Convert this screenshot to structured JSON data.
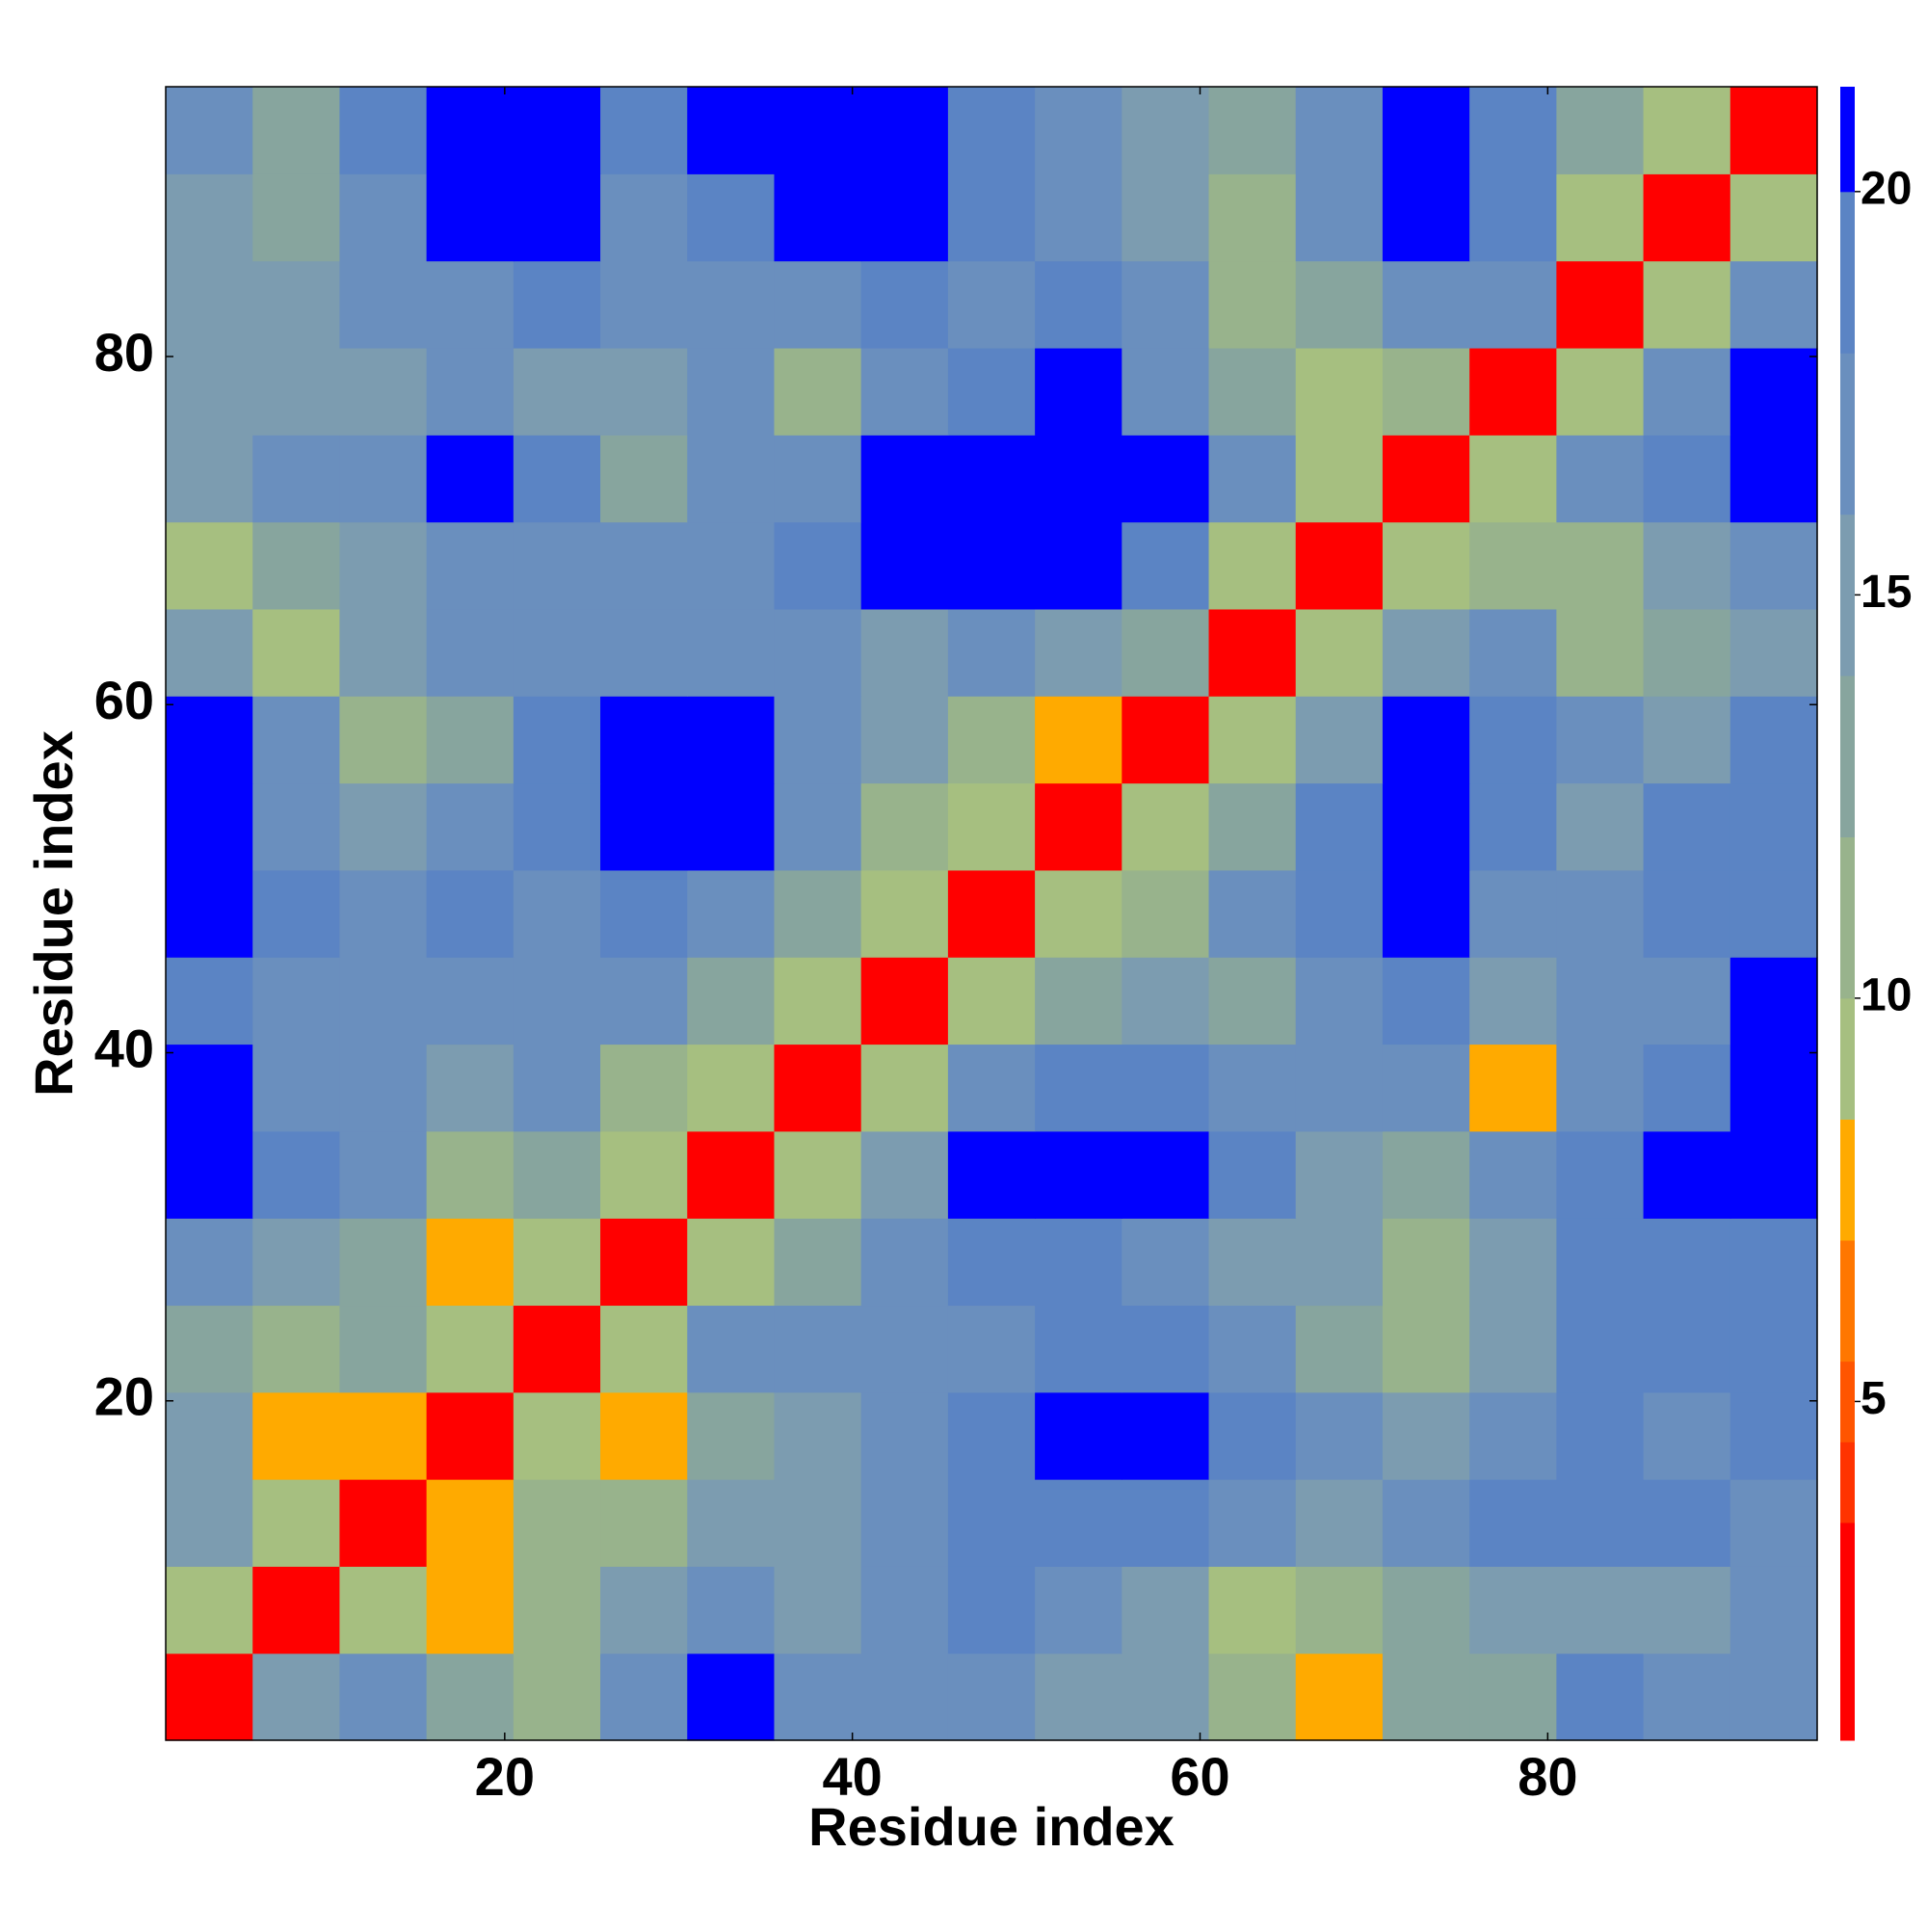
{
  "chart_data": {
    "type": "heatmap",
    "x_label": "Residue index",
    "y_label": "Residue index",
    "x_bins": [
      0.5,
      5.5,
      10.5,
      15.5,
      20.5,
      25.5,
      30.5,
      35.5,
      40.5,
      45.5,
      50.5,
      55.5,
      60.5,
      65.5,
      70.5,
      75.5,
      80.5,
      85.5,
      90.5,
      95.5
    ],
    "y_bins": [
      0.5,
      5.5,
      10.5,
      15.5,
      20.5,
      25.5,
      30.5,
      35.5,
      40.5,
      45.5,
      50.5,
      55.5,
      60.5,
      65.5,
      70.5,
      75.5,
      80.5,
      85.5,
      90.5,
      95.5
    ],
    "xlim": [
      0.5,
      95.5
    ],
    "ylim": [
      0.5,
      95.5
    ],
    "xticks": [
      20,
      40,
      60,
      80
    ],
    "yticks": [
      20,
      40,
      60,
      80
    ],
    "z": [
      [
        3,
        14,
        17,
        12,
        11,
        16,
        20,
        17,
        16,
        17,
        15,
        14,
        11,
        8,
        12,
        13,
        19,
        16,
        16
      ],
      [
        9,
        3,
        9,
        8,
        11,
        14,
        16,
        15,
        17,
        19,
        17,
        15,
        9,
        11,
        13,
        14,
        14,
        15,
        16
      ],
      [
        15,
        9,
        3,
        8,
        10,
        11,
        14,
        15,
        17,
        18,
        19,
        19,
        17,
        14,
        16,
        18,
        19,
        18,
        17
      ],
      [
        15,
        8,
        8,
        3,
        9,
        8,
        13,
        15,
        17,
        18,
        20,
        20,
        18,
        16,
        15,
        16,
        18,
        17,
        18
      ],
      [
        12,
        10,
        13,
        9,
        3,
        9,
        16,
        16,
        16,
        17,
        18,
        18,
        16,
        13,
        10,
        14,
        18,
        19,
        19
      ],
      [
        17,
        15,
        13,
        7,
        9,
        3,
        9,
        12,
        16,
        18,
        19,
        17,
        14,
        14,
        10,
        15,
        18,
        19,
        19
      ],
      [
        20,
        18,
        16,
        10,
        13,
        9,
        3,
        9,
        15,
        20,
        20,
        20,
        18,
        15,
        13,
        17,
        19,
        20,
        20
      ],
      [
        20,
        17,
        16,
        14,
        16,
        10,
        9,
        3,
        9,
        16,
        19,
        18,
        17,
        17,
        16,
        8,
        17,
        19,
        20
      ],
      [
        19,
        17,
        17,
        16,
        17,
        16,
        12,
        9,
        3,
        9,
        13,
        15,
        13,
        17,
        18,
        15,
        16,
        17,
        20
      ],
      [
        21,
        18,
        16,
        18,
        17,
        18,
        16,
        12,
        9,
        3,
        9,
        10,
        16,
        18,
        20,
        17,
        16,
        18,
        19
      ],
      [
        20,
        16,
        14,
        17,
        19,
        20,
        20,
        17,
        11,
        9,
        3,
        9,
        13,
        19,
        21,
        18,
        15,
        18,
        18
      ],
      [
        21,
        16,
        10,
        13,
        18,
        20,
        20,
        17,
        15,
        10,
        8,
        3,
        9,
        15,
        20,
        18,
        17,
        15,
        18
      ],
      [
        14,
        9,
        14,
        16,
        17,
        16,
        17,
        16,
        15,
        17,
        14,
        12,
        3,
        9,
        15,
        16,
        10,
        12,
        15
      ],
      [
        9,
        12,
        15,
        16,
        17,
        16,
        17,
        18,
        20,
        21,
        20,
        19,
        9,
        3,
        9,
        10,
        11,
        15,
        16
      ],
      [
        15,
        16,
        17,
        20,
        19,
        12,
        17,
        17,
        20,
        21,
        21,
        20,
        16,
        9,
        3,
        9,
        17,
        19,
        20
      ],
      [
        15,
        14,
        15,
        17,
        15,
        14,
        16,
        10,
        16,
        19,
        20,
        17,
        13,
        9,
        11,
        3,
        9,
        16,
        20
      ],
      [
        14,
        14,
        16,
        17,
        18,
        16,
        17,
        17,
        19,
        16,
        18,
        16,
        10,
        12,
        17,
        16,
        3,
        9,
        16
      ],
      [
        15,
        12,
        17,
        21,
        20,
        17,
        19,
        20,
        21,
        18,
        16,
        15,
        10,
        16,
        20,
        18,
        9,
        3,
        9
      ],
      [
        17,
        13,
        18,
        21,
        20,
        18,
        20,
        21,
        21,
        19,
        17,
        15,
        12,
        16,
        21,
        19,
        12,
        9,
        3
      ]
    ],
    "color_levels": [
      0.8,
      3.5,
      4.5,
      5.5,
      7,
      8.5,
      10,
      12,
      14,
      16,
      18,
      20,
      21.3
    ],
    "colors": [
      "#ff0000",
      "#ff3300",
      "#ff5500",
      "#ff7700",
      "#ffaa00",
      "#a6bf80",
      "#98b38c",
      "#87a59e",
      "#7c9cb0",
      "#6a8fbe",
      "#5b84c4",
      "#0000ff"
    ],
    "colorbar_ticks": [
      5,
      10,
      15,
      20
    ]
  }
}
